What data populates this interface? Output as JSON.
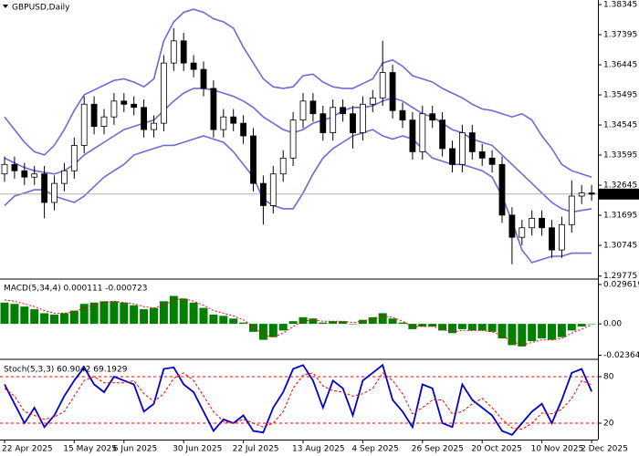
{
  "chart_data": [
    {
      "type": "candlestick",
      "title": "GBPUSD,Daily",
      "open": [
        1.33,
        1.333,
        1.331,
        1.329,
        1.33,
        1.321,
        1.327,
        1.331,
        1.339,
        1.352,
        1.345,
        1.348,
        1.353,
        1.352,
        1.351,
        1.344,
        1.346,
        1.365,
        1.372,
        1.365,
        1.363,
        1.357,
        1.344,
        1.348,
        1.346,
        1.342,
        1.327,
        1.32,
        1.33,
        1.335,
        1.347,
        1.353,
        1.349,
        1.343,
        1.351,
        1.349,
        1.343,
        1.352,
        1.354,
        1.362,
        1.35,
        1.347,
        1.337,
        1.349,
        1.347,
        1.338,
        1.333,
        1.343,
        1.337,
        1.335,
        1.333,
        1.317,
        1.31,
        1.313,
        1.316,
        1.313,
        1.306,
        1.314,
        1.323,
        1.324
      ],
      "high": [
        1.3355,
        1.3355,
        1.3335,
        1.3325,
        1.3325,
        1.3295,
        1.3335,
        1.3415,
        1.3545,
        1.3545,
        1.3505,
        1.3555,
        1.3555,
        1.3545,
        1.3535,
        1.3485,
        1.3675,
        1.376,
        1.3745,
        1.3675,
        1.3655,
        1.3595,
        1.3505,
        1.3505,
        1.3485,
        1.3445,
        1.3295,
        1.3325,
        1.3375,
        1.3495,
        1.3555,
        1.3555,
        1.3515,
        1.3535,
        1.3535,
        1.3515,
        1.3545,
        1.3565,
        1.372,
        1.3645,
        1.3525,
        1.3495,
        1.3515,
        1.3515,
        1.3495,
        1.3405,
        1.3455,
        1.3455,
        1.3395,
        1.3375,
        1.3355,
        1.3195,
        1.3155,
        1.3185,
        1.3185,
        1.3155,
        1.3165,
        1.328,
        1.3265,
        1.3265
      ],
      "low": [
        1.3275,
        1.3285,
        1.3265,
        1.3265,
        1.316,
        1.3185,
        1.3245,
        1.3285,
        1.3365,
        1.3425,
        1.3425,
        1.3455,
        1.3495,
        1.3485,
        1.3415,
        1.3415,
        1.3435,
        1.3625,
        1.3625,
        1.3605,
        1.3545,
        1.3415,
        1.3415,
        1.3435,
        1.3395,
        1.3245,
        1.314,
        1.3175,
        1.3275,
        1.3325,
        1.3445,
        1.3465,
        1.3405,
        1.3405,
        1.3465,
        1.338,
        1.3405,
        1.3495,
        1.3515,
        1.3475,
        1.3445,
        1.3345,
        1.3345,
        1.3445,
        1.3355,
        1.3305,
        1.3305,
        1.3345,
        1.3325,
        1.3305,
        1.3145,
        1.3015,
        1.3075,
        1.3105,
        1.3105,
        1.3035,
        1.3035,
        1.3115,
        1.3205,
        1.3215
      ],
      "close": [
        1.333,
        1.331,
        1.329,
        1.33,
        1.321,
        1.327,
        1.331,
        1.339,
        1.352,
        1.345,
        1.348,
        1.353,
        1.352,
        1.351,
        1.344,
        1.346,
        1.365,
        1.372,
        1.365,
        1.363,
        1.357,
        1.344,
        1.348,
        1.346,
        1.342,
        1.327,
        1.32,
        1.33,
        1.335,
        1.347,
        1.353,
        1.349,
        1.343,
        1.351,
        1.349,
        1.343,
        1.352,
        1.354,
        1.362,
        1.35,
        1.347,
        1.337,
        1.349,
        1.347,
        1.338,
        1.333,
        1.343,
        1.337,
        1.335,
        1.333,
        1.317,
        1.31,
        1.313,
        1.316,
        1.313,
        1.306,
        1.314,
        1.323,
        1.324,
        1.3236
      ],
      "up_color": "#ffffff",
      "down_color": "#000000",
      "outline_color": "#000000",
      "overlays": [
        {
          "color": "#6b6bd6",
          "values": [
            1.348,
            1.344,
            1.34,
            1.337,
            1.336,
            1.339,
            1.344,
            1.35,
            1.355,
            1.3565,
            1.358,
            1.3595,
            1.36,
            1.359,
            1.3575,
            1.36,
            1.372,
            1.378,
            1.381,
            1.382,
            1.381,
            1.379,
            1.378,
            1.376,
            1.37,
            1.365,
            1.36,
            1.3575,
            1.357,
            1.3575,
            1.361,
            1.3615,
            1.359,
            1.3575,
            1.357,
            1.357,
            1.3585,
            1.36,
            1.365,
            1.366,
            1.364,
            1.361,
            1.36,
            1.359,
            1.357,
            1.3555,
            1.354,
            1.352,
            1.3505,
            1.35,
            1.349,
            1.348,
            1.349,
            1.347,
            1.342,
            1.338,
            1.333,
            1.331,
            1.33,
            1.329
          ]
        },
        {
          "color": "#6b6bd6",
          "values": [
            1.335,
            1.3335,
            1.332,
            1.331,
            1.3305,
            1.33,
            1.331,
            1.333,
            1.336,
            1.338,
            1.34,
            1.342,
            1.344,
            1.345,
            1.346,
            1.347,
            1.35,
            1.353,
            1.3555,
            1.357,
            1.357,
            1.3565,
            1.3555,
            1.3545,
            1.353,
            1.351,
            1.348,
            1.346,
            1.344,
            1.343,
            1.344,
            1.346,
            1.347,
            1.348,
            1.35,
            1.351,
            1.351,
            1.3515,
            1.353,
            1.354,
            1.353,
            1.351,
            1.349,
            1.348,
            1.346,
            1.344,
            1.343,
            1.341,
            1.34,
            1.339,
            1.336,
            1.333,
            1.33,
            1.327,
            1.324,
            1.321,
            1.319,
            1.318,
            1.3185,
            1.319
          ]
        },
        {
          "color": "#6b6bd6",
          "values": [
            1.32,
            1.323,
            1.324,
            1.325,
            1.325,
            1.323,
            1.322,
            1.321,
            1.323,
            1.326,
            1.329,
            1.331,
            1.333,
            1.336,
            1.337,
            1.338,
            1.339,
            1.339,
            1.34,
            1.341,
            1.342,
            1.341,
            1.34,
            1.337,
            1.333,
            1.329,
            1.322,
            1.32,
            1.319,
            1.319,
            1.324,
            1.33,
            1.335,
            1.338,
            1.34,
            1.342,
            1.343,
            1.344,
            1.342,
            1.341,
            1.342,
            1.341,
            1.338,
            1.335,
            1.334,
            1.333,
            1.333,
            1.332,
            1.331,
            1.329,
            1.323,
            1.315,
            1.306,
            1.302,
            1.303,
            1.304,
            1.304,
            1.305,
            1.305,
            1.305
          ]
        }
      ],
      "last_price": 1.32364,
      "ylim": [
        1.2971,
        1.3849
      ],
      "yticks": [
        1.38345,
        1.37395,
        1.36445,
        1.35495,
        1.34545,
        1.33595,
        1.32645,
        1.31695,
        1.30745,
        1.29775
      ]
    },
    {
      "type": "bar",
      "title": "MACD(5,34,4) 0.000111 -0.000723",
      "color": "#008000",
      "values": [
        0.016,
        0.015,
        0.013,
        0.011,
        0.008,
        0.007,
        0.008,
        0.01,
        0.015,
        0.016,
        0.017,
        0.017,
        0.016,
        0.014,
        0.011,
        0.012,
        0.017,
        0.021,
        0.019,
        0.016,
        0.012,
        0.007,
        0.006,
        0.004,
        0.001,
        -0.006,
        -0.012,
        -0.01,
        -0.005,
        0.002,
        0.005,
        0.004,
        0.001,
        0.002,
        0.002,
        0.0,
        0.003,
        0.005,
        0.008,
        0.004,
        0.001,
        -0.004,
        -0.002,
        -0.002,
        -0.005,
        -0.007,
        -0.004,
        -0.005,
        -0.005,
        -0.006,
        -0.011,
        -0.016,
        -0.017,
        -0.013,
        -0.011,
        -0.012,
        -0.01,
        -0.005,
        -0.002,
        0.000111
      ],
      "signal": {
        "color": "#ff0000",
        "values": [
          0.018,
          0.017,
          0.015,
          0.013,
          0.01,
          0.008,
          0.008,
          0.009,
          0.012,
          0.014,
          0.016,
          0.017,
          0.016,
          0.015,
          0.013,
          0.012,
          0.014,
          0.018,
          0.019,
          0.017,
          0.014,
          0.01,
          0.008,
          0.006,
          0.003,
          -0.002,
          -0.008,
          -0.01,
          -0.007,
          -0.002,
          0.002,
          0.003,
          0.002,
          0.002,
          0.002,
          0.001,
          0.002,
          0.004,
          0.006,
          0.005,
          0.002,
          -0.002,
          -0.002,
          -0.002,
          -0.004,
          -0.006,
          -0.005,
          -0.005,
          -0.005,
          -0.006,
          -0.009,
          -0.013,
          -0.016,
          -0.014,
          -0.012,
          -0.012,
          -0.011,
          -0.007,
          -0.004,
          -0.000723
        ]
      },
      "ylim": [
        -0.026,
        0.033
      ],
      "yticks": [
        0.029619,
        {
          "value": 0,
          "label": "0.00"
        },
        -0.02364
      ]
    },
    {
      "type": "line",
      "title": "Stoch(5,3,3) 60.9042 69.1929",
      "categories": [
        "22 Apr 2025",
        null,
        null,
        null,
        null,
        null,
        null,
        "15 May 2025",
        null,
        null,
        null,
        null,
        "6 Jun 2025",
        null,
        null,
        null,
        null,
        null,
        "30 Jun 2025",
        null,
        null,
        null,
        null,
        null,
        "22 Jul 2025",
        null,
        null,
        null,
        null,
        null,
        "13 Aug 2025",
        null,
        null,
        null,
        null,
        null,
        "4 Sep 2025",
        null,
        null,
        null,
        null,
        null,
        "26 Sep 2025",
        null,
        null,
        null,
        null,
        null,
        "20 Oct 2025",
        null,
        null,
        null,
        null,
        null,
        "10 Nov 2025",
        null,
        null,
        null,
        null,
        "2 Dec 2025"
      ],
      "series": [
        {
          "color": "#0000cd",
          "values": [
            70,
            45,
            20,
            40,
            15,
            30,
            55,
            75,
            92,
            70,
            60,
            80,
            75,
            70,
            35,
            45,
            90,
            92,
            70,
            60,
            35,
            10,
            25,
            20,
            30,
            10,
            8,
            40,
            60,
            90,
            95,
            75,
            40,
            75,
            65,
            30,
            75,
            85,
            95,
            50,
            35,
            15,
            70,
            65,
            20,
            15,
            70,
            50,
            40,
            30,
            10,
            5,
            20,
            35,
            45,
            20,
            50,
            85,
            90,
            60.9042
          ]
        },
        {
          "color": "#ff0000",
          "dashed": true,
          "values": [
            65,
            55,
            35,
            30,
            25,
            28,
            35,
            55,
            75,
            80,
            72,
            72,
            72,
            75,
            58,
            48,
            58,
            78,
            85,
            75,
            55,
            35,
            22,
            20,
            25,
            20,
            15,
            20,
            35,
            65,
            82,
            85,
            68,
            62,
            60,
            55,
            58,
            65,
            85,
            75,
            58,
            32,
            40,
            50,
            50,
            32,
            35,
            45,
            52,
            40,
            25,
            14,
            12,
            20,
            33,
            32,
            38,
            52,
            75,
            69.1929
          ]
        }
      ],
      "level_color": "#ff0000",
      "ylim": [
        0,
        100
      ],
      "yticks": [
        80,
        20
      ]
    }
  ]
}
